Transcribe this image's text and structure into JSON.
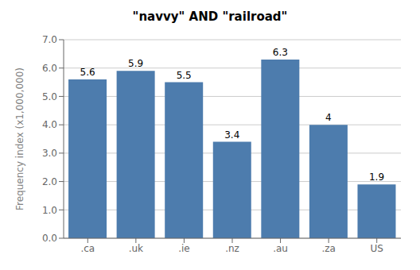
{
  "chart_data": {
    "type": "bar",
    "title": "\"navvy\" AND \"railroad\"",
    "categories": [
      ".ca",
      ".uk",
      ".ie",
      ".nz",
      ".au",
      ".za",
      "US"
    ],
    "values": [
      5.6,
      5.9,
      5.5,
      3.4,
      6.3,
      4.0,
      1.9
    ],
    "color": "#4d7cad",
    "ylabel": "Frequency index (x1,000,000)",
    "ylim": [
      0,
      7.0
    ],
    "yticks": [
      {
        "value": 0.0,
        "label": "0.0"
      },
      {
        "value": 1.0,
        "label": "1.0"
      },
      {
        "value": 2.0,
        "label": "2.0"
      },
      {
        "value": 3.0,
        "label": "3.0"
      },
      {
        "value": 4.0,
        "label": "4.0"
      },
      {
        "value": 5.0,
        "label": "5.0"
      },
      {
        "value": 6.0,
        "label": "6.0"
      },
      {
        "value": 7.0,
        "label": "7.0"
      }
    ],
    "grid": true,
    "data_labels": true
  }
}
